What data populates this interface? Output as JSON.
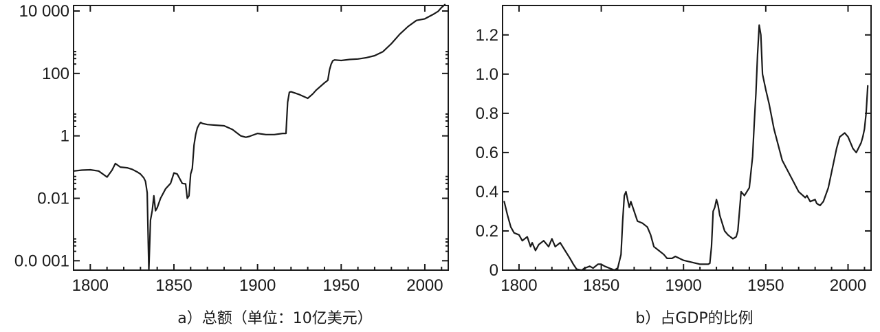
{
  "chart_data": [
    {
      "type": "line",
      "caption": "a）总额（单位：10亿美元）",
      "yscale": "log",
      "xlim": [
        1790,
        2014
      ],
      "ylim": [
        5e-05,
        15000
      ],
      "xticks": [
        1800,
        1850,
        1900,
        1950,
        2000
      ],
      "xtick_labels": [
        "1800",
        "1850",
        "1900",
        "1950",
        "2000"
      ],
      "yticks": [
        0.0001,
        0.01,
        1,
        100,
        10000
      ],
      "ytick_labels": [
        "0.0 001",
        "0.01",
        "1",
        "100",
        "10 000"
      ],
      "grid": false,
      "series": [
        {
          "x": [
            1790,
            1795,
            1800,
            1805,
            1810,
            1813,
            1815,
            1818,
            1822,
            1825,
            1828,
            1830,
            1832,
            1833,
            1834,
            1835,
            1836,
            1837,
            1838,
            1839,
            1840,
            1842,
            1845,
            1848,
            1850,
            1852,
            1855,
            1857,
            1858,
            1859,
            1860,
            1861,
            1862,
            1863,
            1864,
            1865,
            1866,
            1867,
            1870,
            1875,
            1880,
            1885,
            1890,
            1893,
            1895,
            1900,
            1905,
            1910,
            1915,
            1916,
            1917,
            1918,
            1919,
            1920,
            1925,
            1930,
            1933,
            1935,
            1940,
            1942,
            1943,
            1944,
            1945,
            1946,
            1950,
            1955,
            1960,
            1965,
            1970,
            1975,
            1980,
            1985,
            1990,
            1995,
            2000,
            2005,
            2008,
            2010,
            2012
          ],
          "y": [
            0.075,
            0.08,
            0.082,
            0.075,
            0.048,
            0.08,
            0.13,
            0.1,
            0.095,
            0.085,
            0.07,
            0.06,
            0.045,
            0.035,
            0.015,
            4e-05,
            0.002,
            0.004,
            0.012,
            0.004,
            0.005,
            0.01,
            0.02,
            0.03,
            0.065,
            0.06,
            0.03,
            0.029,
            0.01,
            0.012,
            0.06,
            0.09,
            0.5,
            1.1,
            1.8,
            2.3,
            2.7,
            2.5,
            2.3,
            2.2,
            2.1,
            1.6,
            1.0,
            0.9,
            0.96,
            1.2,
            1.1,
            1.1,
            1.2,
            1.2,
            1.2,
            12,
            25,
            26,
            21,
            16,
            22,
            29,
            50,
            60,
            130,
            200,
            255,
            270,
            260,
            280,
            290,
            320,
            370,
            500,
            900,
            1800,
            3200,
            5000,
            5600,
            7800,
            9800,
            13000,
            16000
          ]
        }
      ]
    },
    {
      "type": "line",
      "caption": "b）占GDP的比例",
      "yscale": "linear",
      "xlim": [
        1790,
        2014
      ],
      "ylim": [
        0,
        1.35
      ],
      "xticks": [
        1800,
        1850,
        1900,
        1950,
        2000
      ],
      "xtick_labels": [
        "1800",
        "1850",
        "1900",
        "1950",
        "2000"
      ],
      "yticks": [
        0,
        0.2,
        0.4,
        0.6,
        0.8,
        1.0,
        1.2
      ],
      "ytick_labels": [
        "0",
        "0.2",
        "0.4",
        "0.6",
        "0.8",
        "1.0",
        "1.2"
      ],
      "grid": false,
      "series": [
        {
          "x": [
            1791,
            1793,
            1795,
            1797,
            1800,
            1802,
            1805,
            1807,
            1808,
            1810,
            1812,
            1815,
            1818,
            1820,
            1822,
            1825,
            1828,
            1831,
            1833,
            1835,
            1838,
            1840,
            1843,
            1845,
            1848,
            1850,
            1852,
            1855,
            1858,
            1860,
            1862,
            1863,
            1864,
            1865,
            1866,
            1867,
            1868,
            1870,
            1872,
            1875,
            1878,
            1880,
            1882,
            1885,
            1888,
            1890,
            1893,
            1895,
            1900,
            1905,
            1910,
            1915,
            1916,
            1917,
            1918,
            1919,
            1920,
            1921,
            1922,
            1925,
            1927,
            1930,
            1932,
            1933,
            1935,
            1937,
            1940,
            1941,
            1942,
            1943,
            1944,
            1945,
            1946,
            1947,
            1948,
            1950,
            1952,
            1955,
            1960,
            1965,
            1970,
            1974,
            1975,
            1977,
            1980,
            1981,
            1983,
            1985,
            1988,
            1990,
            1993,
            1995,
            1998,
            2000,
            2003,
            2005,
            2008,
            2009,
            2010,
            2011,
            2012
          ],
          "y": [
            0.35,
            0.28,
            0.22,
            0.19,
            0.18,
            0.15,
            0.17,
            0.12,
            0.14,
            0.1,
            0.13,
            0.15,
            0.12,
            0.16,
            0.12,
            0.14,
            0.1,
            0.06,
            0.03,
            0.005,
            0.0,
            0.01,
            0.02,
            0.01,
            0.03,
            0.03,
            0.02,
            0.01,
            0.0,
            0.01,
            0.08,
            0.25,
            0.38,
            0.4,
            0.36,
            0.32,
            0.35,
            0.3,
            0.25,
            0.24,
            0.22,
            0.18,
            0.12,
            0.1,
            0.08,
            0.06,
            0.06,
            0.07,
            0.05,
            0.04,
            0.03,
            0.03,
            0.035,
            0.12,
            0.3,
            0.32,
            0.36,
            0.33,
            0.28,
            0.2,
            0.18,
            0.16,
            0.17,
            0.2,
            0.4,
            0.38,
            0.42,
            0.5,
            0.58,
            0.75,
            0.9,
            1.1,
            1.25,
            1.2,
            1.0,
            0.92,
            0.85,
            0.72,
            0.56,
            0.48,
            0.4,
            0.37,
            0.38,
            0.35,
            0.36,
            0.34,
            0.33,
            0.35,
            0.42,
            0.5,
            0.62,
            0.68,
            0.7,
            0.68,
            0.62,
            0.6,
            0.65,
            0.68,
            0.72,
            0.8,
            0.94
          ]
        }
      ]
    }
  ]
}
